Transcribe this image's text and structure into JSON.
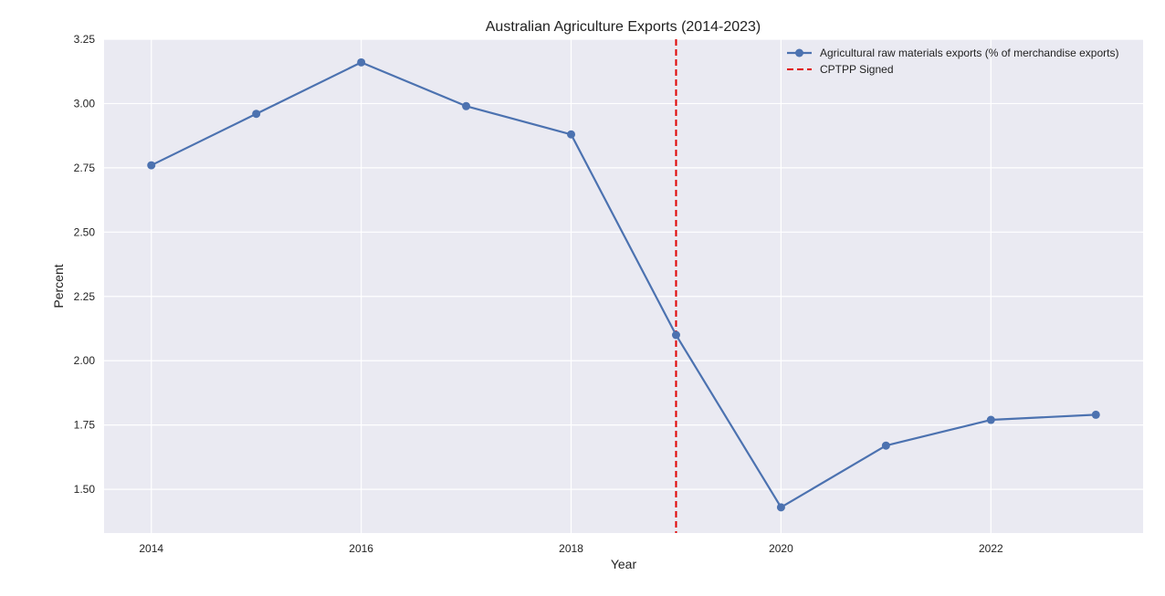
{
  "chart_data": {
    "type": "line",
    "title": "Australian Agriculture Exports (2014-2023)",
    "xlabel": "Year",
    "ylabel": "Percent",
    "x": [
      2014,
      2015,
      2016,
      2017,
      2018,
      2019,
      2020,
      2021,
      2022,
      2023
    ],
    "xlim": [
      2013.55,
      2023.45
    ],
    "ylim": [
      1.33,
      3.25
    ],
    "x_ticks": [
      "2014",
      "2016",
      "2018",
      "2020",
      "2022"
    ],
    "y_ticks": [
      "1.50",
      "1.75",
      "2.00",
      "2.25",
      "2.50",
      "2.75",
      "3.00",
      "3.25"
    ],
    "series": [
      {
        "name": "Agricultural raw materials exports (% of merchandise exports)",
        "values": [
          2.76,
          2.96,
          3.16,
          2.99,
          2.88,
          2.1,
          1.43,
          1.67,
          1.77,
          1.79
        ],
        "color": "#4c72b0",
        "marker": "circle"
      }
    ],
    "annotations": [
      {
        "type": "vline",
        "x": 2019,
        "label": "CPTPP Signed",
        "color": "#e00000",
        "style": "dashed"
      }
    ],
    "grid": true,
    "background": "#eaeaf2",
    "legend_position": "top-right"
  }
}
